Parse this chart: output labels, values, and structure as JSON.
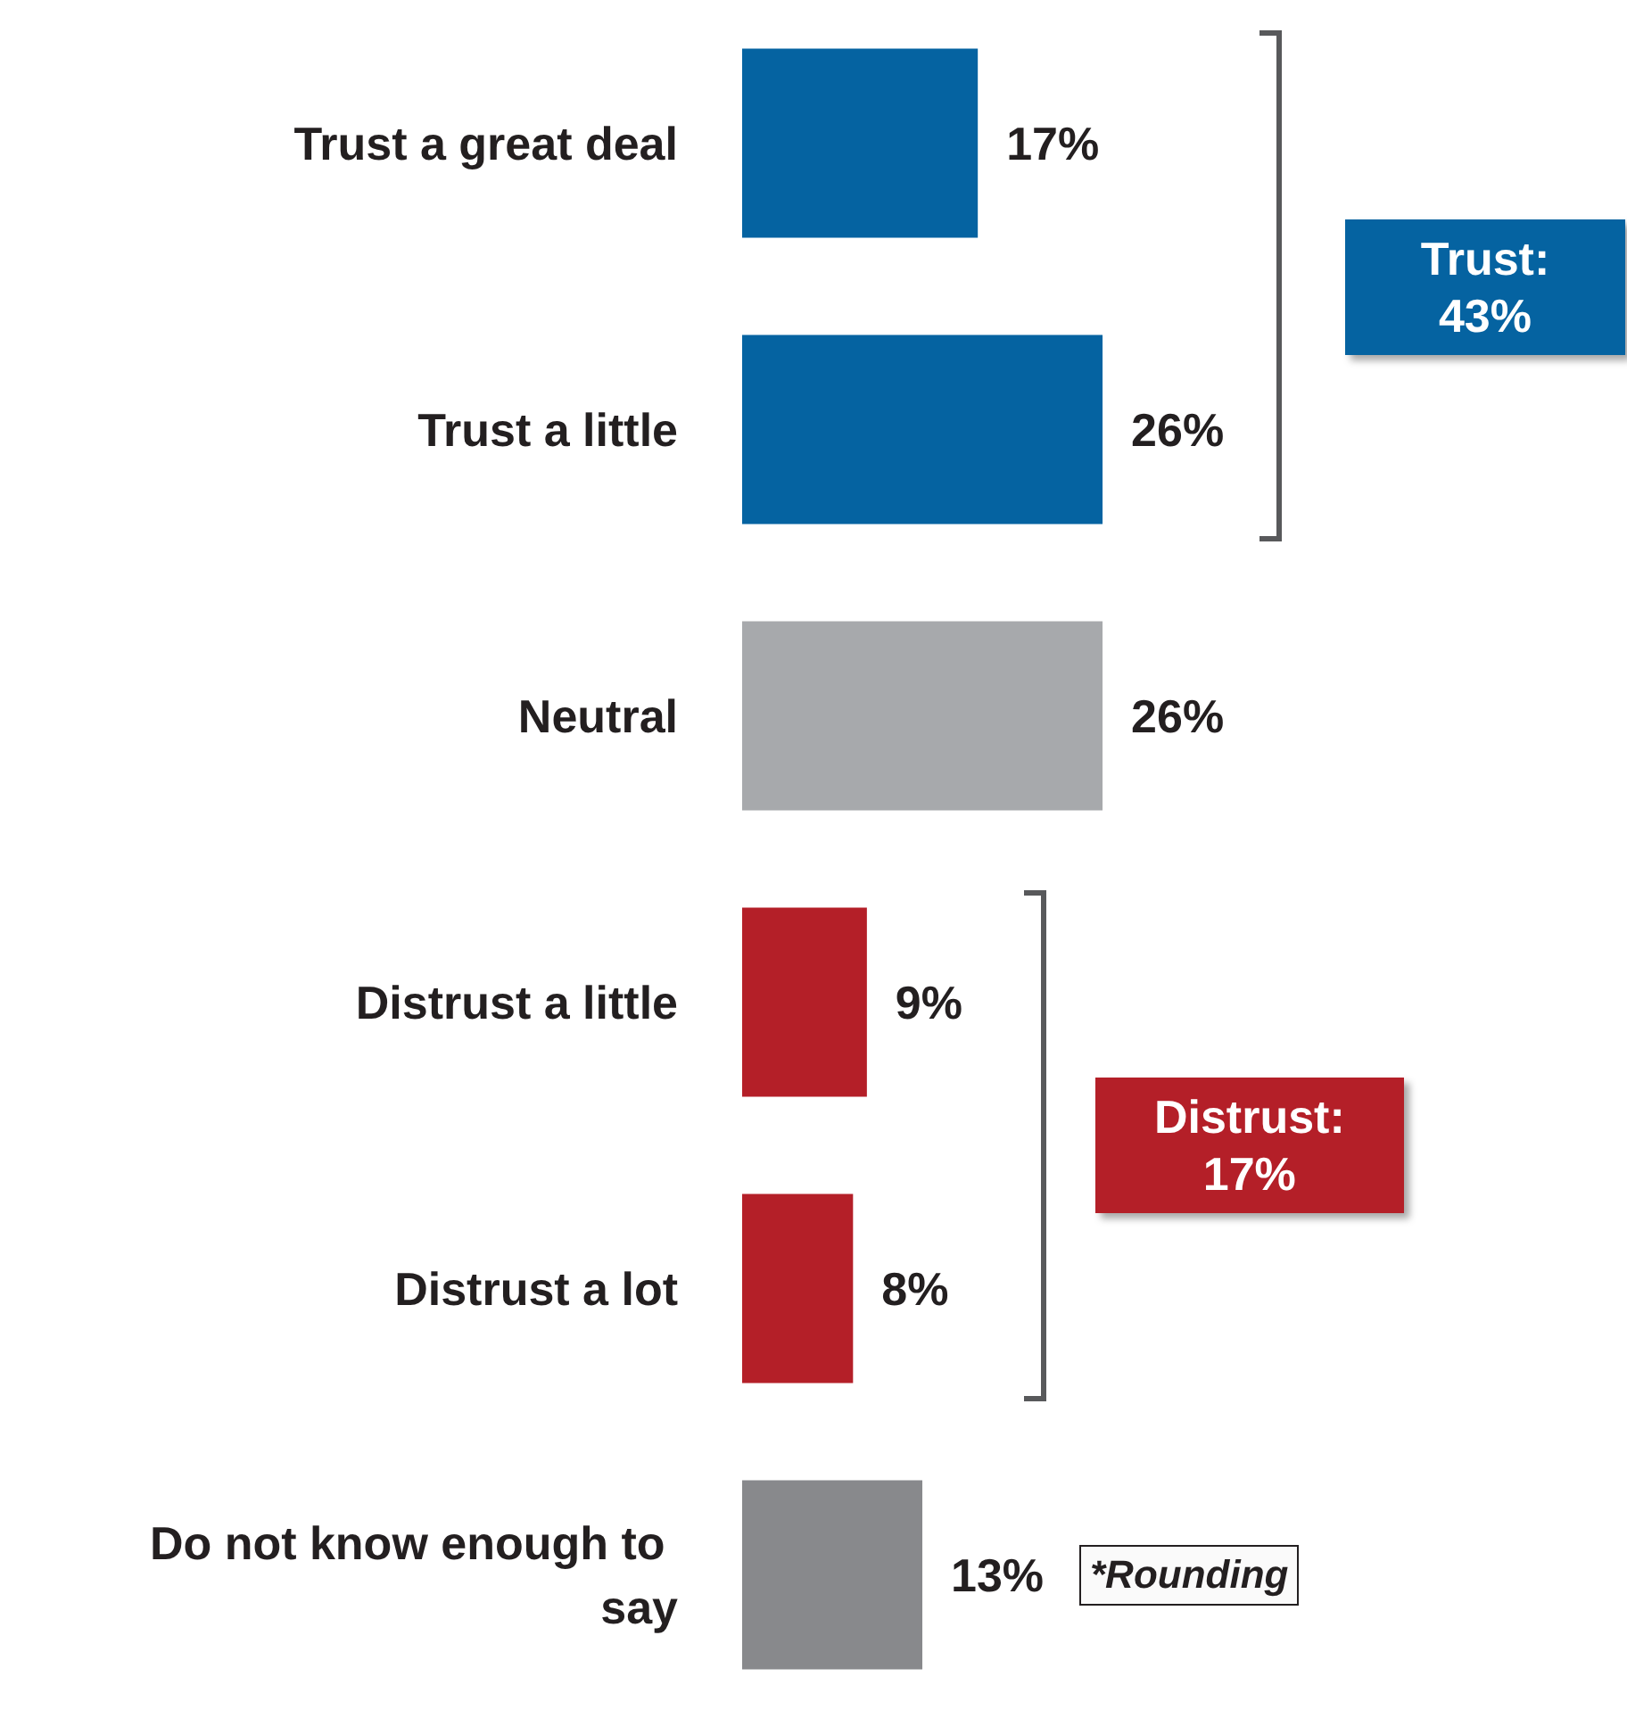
{
  "chart_data": {
    "type": "bar",
    "orientation": "horizontal",
    "categories": [
      "Trust a great deal",
      "Trust a little",
      "Neutral",
      "Distrust a little",
      "Distrust a lot",
      "Do not know enough to say"
    ],
    "values": [
      17,
      26,
      26,
      9,
      8,
      13
    ],
    "colors": [
      "#0563a1",
      "#0563a1",
      "#a7a9ac",
      "#b41f28",
      "#b41f28",
      "#88898c"
    ],
    "value_labels": [
      "17%",
      "26%",
      "26%",
      "9%",
      "8%",
      "13%"
    ],
    "annotations": [
      "Trust: 43%",
      "Distrust: 17%",
      "*Rounding"
    ],
    "grid": false
  }
}
